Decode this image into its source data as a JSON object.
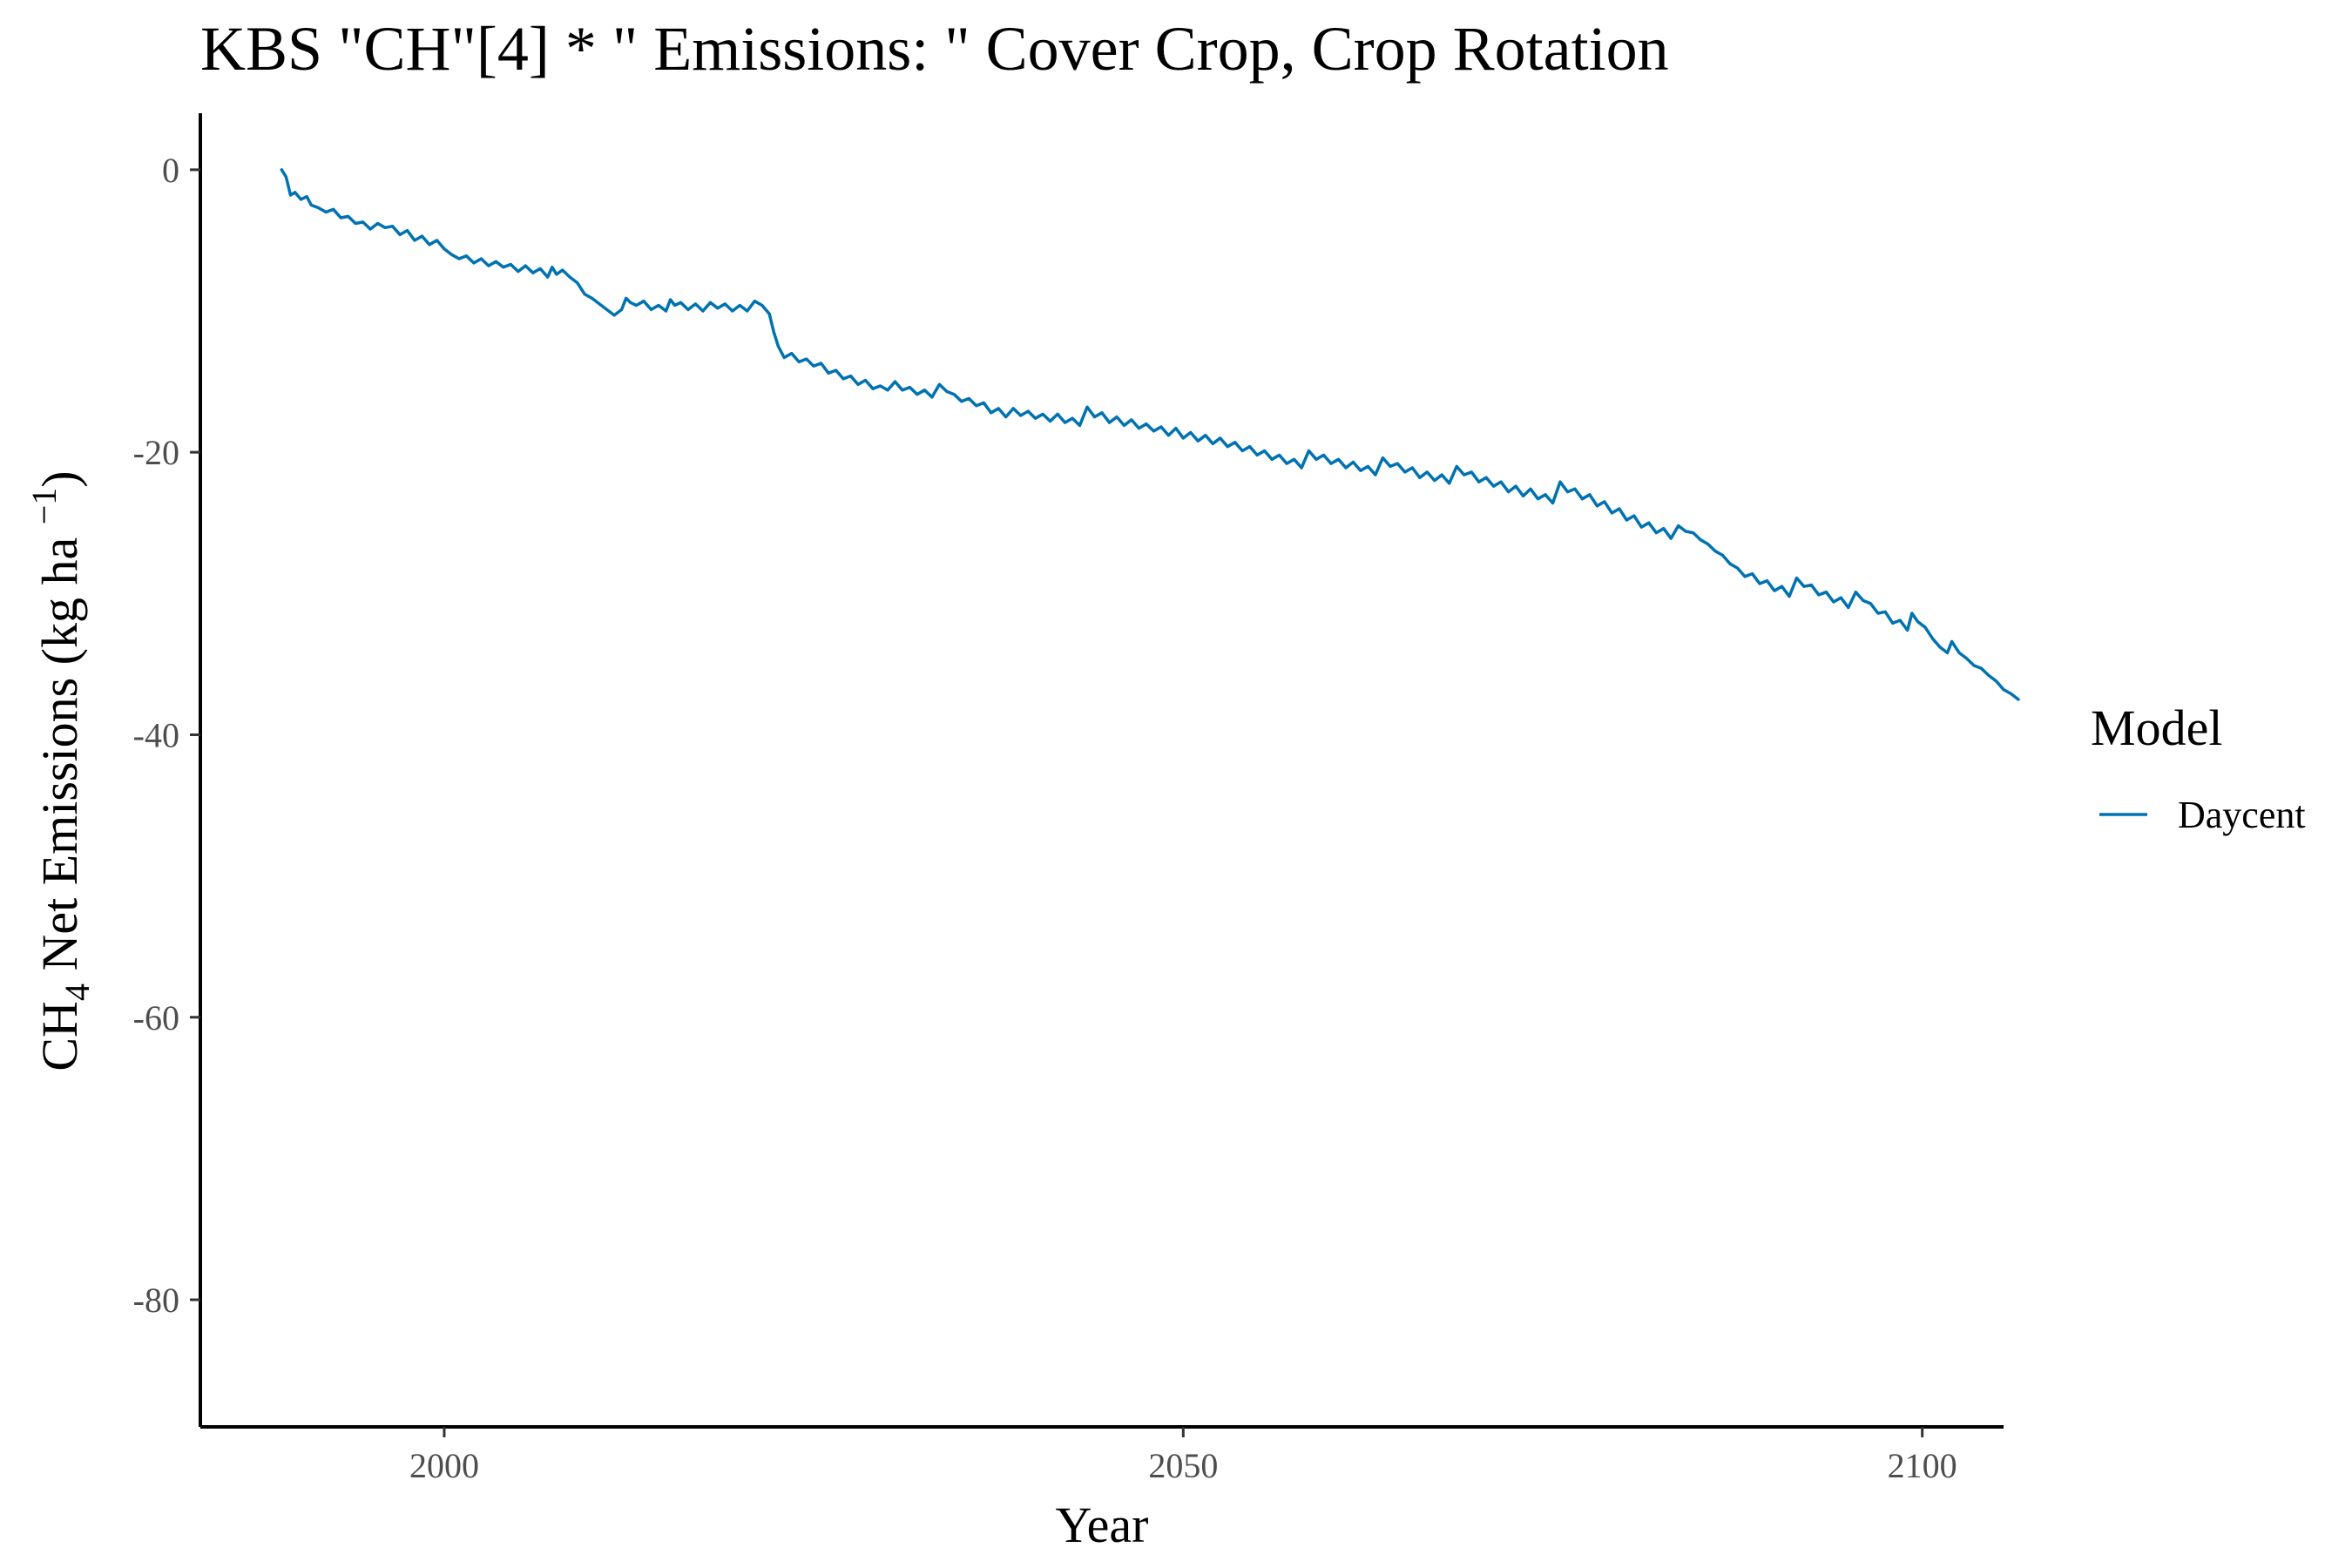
{
  "chart_data": {
    "type": "line",
    "title": "KBS \"CH\"[4] * \" Emissions: \" Cover Crop, Crop Rotation",
    "xlabel": "Year",
    "ylabel_main": "CH",
    "ylabel_sub": "4",
    "ylabel_rest": " Net Emissions (kg ha ",
    "ylabel_sup": "−1",
    "ylabel_close": ")",
    "xlim": [
      1983.5,
      2105.5
    ],
    "ylim": [
      -89,
      4
    ],
    "x_ticks": [
      2000,
      2050,
      2100
    ],
    "x_tick_labels": [
      "2000",
      "2050",
      "2100"
    ],
    "y_ticks": [
      0,
      -20,
      -40,
      -60,
      -80
    ],
    "y_tick_labels": [
      "0",
      "-20",
      "-40",
      "-60",
      "-80"
    ],
    "grid": false,
    "legend": {
      "title": "Model",
      "position": "right"
    },
    "series": [
      {
        "name": "Daycent",
        "color": "#0072B2",
        "points": [
          [
            1989.0,
            0.0
          ],
          [
            1989.3,
            -0.5
          ],
          [
            1989.6,
            -1.8
          ],
          [
            1989.9,
            -1.6
          ],
          [
            1990.3,
            -2.1
          ],
          [
            1990.7,
            -1.9
          ],
          [
            1991.0,
            -2.5
          ],
          [
            1991.5,
            -2.7
          ],
          [
            1992.0,
            -3.0
          ],
          [
            1992.5,
            -2.8
          ],
          [
            1993.0,
            -3.4
          ],
          [
            1993.5,
            -3.3
          ],
          [
            1994.0,
            -3.8
          ],
          [
            1994.5,
            -3.7
          ],
          [
            1995.0,
            -4.2
          ],
          [
            1995.5,
            -3.8
          ],
          [
            1996.0,
            -4.1
          ],
          [
            1996.5,
            -4.0
          ],
          [
            1997.0,
            -4.6
          ],
          [
            1997.5,
            -4.3
          ],
          [
            1998.0,
            -5.0
          ],
          [
            1998.5,
            -4.7
          ],
          [
            1999.0,
            -5.3
          ],
          [
            1999.5,
            -5.0
          ],
          [
            2000.0,
            -5.6
          ],
          [
            2000.5,
            -6.0
          ],
          [
            2001.0,
            -6.3
          ],
          [
            2001.5,
            -6.1
          ],
          [
            2002.0,
            -6.6
          ],
          [
            2002.5,
            -6.3
          ],
          [
            2003.0,
            -6.8
          ],
          [
            2003.5,
            -6.5
          ],
          [
            2004.0,
            -6.9
          ],
          [
            2004.5,
            -6.7
          ],
          [
            2005.0,
            -7.2
          ],
          [
            2005.5,
            -6.8
          ],
          [
            2006.0,
            -7.3
          ],
          [
            2006.5,
            -7.0
          ],
          [
            2007.0,
            -7.6
          ],
          [
            2007.3,
            -6.9
          ],
          [
            2007.6,
            -7.4
          ],
          [
            2008.0,
            -7.1
          ],
          [
            2008.5,
            -7.6
          ],
          [
            2009.0,
            -8.0
          ],
          [
            2009.5,
            -8.8
          ],
          [
            2010.0,
            -9.1
          ],
          [
            2010.5,
            -9.5
          ],
          [
            2011.0,
            -9.9
          ],
          [
            2011.5,
            -10.3
          ],
          [
            2012.0,
            -9.9
          ],
          [
            2012.3,
            -9.1
          ],
          [
            2012.6,
            -9.4
          ],
          [
            2013.0,
            -9.6
          ],
          [
            2013.5,
            -9.3
          ],
          [
            2014.0,
            -9.9
          ],
          [
            2014.5,
            -9.6
          ],
          [
            2015.0,
            -10.0
          ],
          [
            2015.3,
            -9.2
          ],
          [
            2015.6,
            -9.6
          ],
          [
            2016.0,
            -9.4
          ],
          [
            2016.5,
            -9.9
          ],
          [
            2017.0,
            -9.5
          ],
          [
            2017.5,
            -10.0
          ],
          [
            2018.0,
            -9.4
          ],
          [
            2018.5,
            -9.8
          ],
          [
            2019.0,
            -9.5
          ],
          [
            2019.5,
            -10.0
          ],
          [
            2020.0,
            -9.6
          ],
          [
            2020.5,
            -10.0
          ],
          [
            2021.0,
            -9.3
          ],
          [
            2021.5,
            -9.6
          ],
          [
            2022.0,
            -10.2
          ],
          [
            2022.3,
            -11.5
          ],
          [
            2022.6,
            -12.5
          ],
          [
            2023.0,
            -13.3
          ],
          [
            2023.5,
            -13.0
          ],
          [
            2024.0,
            -13.6
          ],
          [
            2024.5,
            -13.4
          ],
          [
            2025.0,
            -13.9
          ],
          [
            2025.5,
            -13.7
          ],
          [
            2026.0,
            -14.4
          ],
          [
            2026.5,
            -14.2
          ],
          [
            2027.0,
            -14.8
          ],
          [
            2027.5,
            -14.6
          ],
          [
            2028.0,
            -15.2
          ],
          [
            2028.5,
            -14.9
          ],
          [
            2029.0,
            -15.5
          ],
          [
            2029.5,
            -15.3
          ],
          [
            2030.0,
            -15.6
          ],
          [
            2030.5,
            -15.0
          ],
          [
            2031.0,
            -15.6
          ],
          [
            2031.5,
            -15.4
          ],
          [
            2032.0,
            -15.9
          ],
          [
            2032.5,
            -15.6
          ],
          [
            2033.0,
            -16.1
          ],
          [
            2033.5,
            -15.2
          ],
          [
            2034.0,
            -15.7
          ],
          [
            2034.5,
            -15.9
          ],
          [
            2035.0,
            -16.4
          ],
          [
            2035.5,
            -16.2
          ],
          [
            2036.0,
            -16.7
          ],
          [
            2036.5,
            -16.5
          ],
          [
            2037.0,
            -17.2
          ],
          [
            2037.5,
            -16.9
          ],
          [
            2038.0,
            -17.5
          ],
          [
            2038.5,
            -16.9
          ],
          [
            2039.0,
            -17.4
          ],
          [
            2039.5,
            -17.1
          ],
          [
            2040.0,
            -17.6
          ],
          [
            2040.5,
            -17.3
          ],
          [
            2041.0,
            -17.8
          ],
          [
            2041.5,
            -17.3
          ],
          [
            2042.0,
            -17.9
          ],
          [
            2042.5,
            -17.6
          ],
          [
            2043.0,
            -18.1
          ],
          [
            2043.5,
            -16.8
          ],
          [
            2044.0,
            -17.5
          ],
          [
            2044.5,
            -17.2
          ],
          [
            2045.0,
            -17.9
          ],
          [
            2045.5,
            -17.5
          ],
          [
            2046.0,
            -18.1
          ],
          [
            2046.5,
            -17.7
          ],
          [
            2047.0,
            -18.3
          ],
          [
            2047.5,
            -18.0
          ],
          [
            2048.0,
            -18.5
          ],
          [
            2048.5,
            -18.2
          ],
          [
            2049.0,
            -18.8
          ],
          [
            2049.5,
            -18.3
          ],
          [
            2050.0,
            -19.0
          ],
          [
            2050.5,
            -18.6
          ],
          [
            2051.0,
            -19.2
          ],
          [
            2051.5,
            -18.8
          ],
          [
            2052.0,
            -19.4
          ],
          [
            2052.5,
            -19.0
          ],
          [
            2053.0,
            -19.6
          ],
          [
            2053.5,
            -19.3
          ],
          [
            2054.0,
            -19.9
          ],
          [
            2054.5,
            -19.6
          ],
          [
            2055.0,
            -20.2
          ],
          [
            2055.5,
            -19.9
          ],
          [
            2056.0,
            -20.5
          ],
          [
            2056.5,
            -20.2
          ],
          [
            2057.0,
            -20.8
          ],
          [
            2057.5,
            -20.5
          ],
          [
            2058.0,
            -21.1
          ],
          [
            2058.5,
            -19.9
          ],
          [
            2059.0,
            -20.5
          ],
          [
            2059.5,
            -20.2
          ],
          [
            2060.0,
            -20.8
          ],
          [
            2060.5,
            -20.5
          ],
          [
            2061.0,
            -21.1
          ],
          [
            2061.5,
            -20.7
          ],
          [
            2062.0,
            -21.3
          ],
          [
            2062.5,
            -21.0
          ],
          [
            2063.0,
            -21.6
          ],
          [
            2063.5,
            -20.4
          ],
          [
            2064.0,
            -21.0
          ],
          [
            2064.5,
            -20.8
          ],
          [
            2065.0,
            -21.4
          ],
          [
            2065.5,
            -21.1
          ],
          [
            2066.0,
            -21.8
          ],
          [
            2066.5,
            -21.4
          ],
          [
            2067.0,
            -22.0
          ],
          [
            2067.5,
            -21.6
          ],
          [
            2068.0,
            -22.2
          ],
          [
            2068.5,
            -21.0
          ],
          [
            2069.0,
            -21.6
          ],
          [
            2069.5,
            -21.4
          ],
          [
            2070.0,
            -22.1
          ],
          [
            2070.5,
            -21.8
          ],
          [
            2071.0,
            -22.4
          ],
          [
            2071.5,
            -22.1
          ],
          [
            2072.0,
            -22.8
          ],
          [
            2072.5,
            -22.4
          ],
          [
            2073.0,
            -23.1
          ],
          [
            2073.5,
            -22.6
          ],
          [
            2074.0,
            -23.3
          ],
          [
            2074.5,
            -23.0
          ],
          [
            2075.0,
            -23.6
          ],
          [
            2075.5,
            -22.1
          ],
          [
            2076.0,
            -22.8
          ],
          [
            2076.5,
            -22.6
          ],
          [
            2077.0,
            -23.3
          ],
          [
            2077.5,
            -23.0
          ],
          [
            2078.0,
            -23.8
          ],
          [
            2078.5,
            -23.5
          ],
          [
            2079.0,
            -24.3
          ],
          [
            2079.5,
            -24.0
          ],
          [
            2080.0,
            -24.8
          ],
          [
            2080.5,
            -24.5
          ],
          [
            2081.0,
            -25.3
          ],
          [
            2081.5,
            -25.0
          ],
          [
            2082.0,
            -25.7
          ],
          [
            2082.5,
            -25.4
          ],
          [
            2083.0,
            -26.1
          ],
          [
            2083.5,
            -25.2
          ],
          [
            2084.0,
            -25.6
          ],
          [
            2084.5,
            -25.7
          ],
          [
            2085.0,
            -26.2
          ],
          [
            2085.5,
            -26.5
          ],
          [
            2086.0,
            -27.0
          ],
          [
            2086.5,
            -27.3
          ],
          [
            2087.0,
            -27.9
          ],
          [
            2087.5,
            -28.2
          ],
          [
            2088.0,
            -28.8
          ],
          [
            2088.5,
            -28.6
          ],
          [
            2089.0,
            -29.3
          ],
          [
            2089.5,
            -29.1
          ],
          [
            2090.0,
            -29.8
          ],
          [
            2090.5,
            -29.5
          ],
          [
            2091.0,
            -30.2
          ],
          [
            2091.5,
            -28.9
          ],
          [
            2092.0,
            -29.5
          ],
          [
            2092.5,
            -29.4
          ],
          [
            2093.0,
            -30.1
          ],
          [
            2093.5,
            -29.9
          ],
          [
            2094.0,
            -30.6
          ],
          [
            2094.5,
            -30.3
          ],
          [
            2095.0,
            -31.0
          ],
          [
            2095.5,
            -29.9
          ],
          [
            2096.0,
            -30.5
          ],
          [
            2096.5,
            -30.7
          ],
          [
            2097.0,
            -31.4
          ],
          [
            2097.5,
            -31.3
          ],
          [
            2098.0,
            -32.1
          ],
          [
            2098.5,
            -31.9
          ],
          [
            2099.0,
            -32.6
          ],
          [
            2099.3,
            -31.4
          ],
          [
            2099.7,
            -32.0
          ],
          [
            2100.2,
            -32.4
          ],
          [
            2100.7,
            -33.2
          ],
          [
            2101.2,
            -33.8
          ],
          [
            2101.7,
            -34.2
          ],
          [
            2102.0,
            -33.4
          ],
          [
            2102.5,
            -34.2
          ],
          [
            2103.0,
            -34.6
          ],
          [
            2103.5,
            -35.1
          ],
          [
            2104.0,
            -35.3
          ],
          [
            2104.5,
            -35.8
          ],
          [
            2105.0,
            -36.2
          ],
          [
            2105.5,
            -36.8
          ],
          [
            2106.0,
            -37.1
          ],
          [
            2106.5,
            -37.5
          ]
        ]
      }
    ]
  }
}
